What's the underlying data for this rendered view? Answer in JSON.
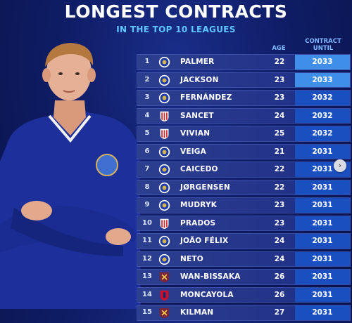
{
  "header": {
    "title": "LONGEST CONTRACTS",
    "subtitle": "IN THE TOP 10 LEAGUES",
    "age_label": "AGE",
    "contract_label_line1": "CONTRACT",
    "contract_label_line2": "UNTIL"
  },
  "colors": {
    "background": "#0f1d66",
    "accent": "#5ec6ff",
    "row_bg": "#2c3f8f",
    "contract_bg": "#1a4fc0",
    "contract_highlight_bg": "#3f8ee8"
  },
  "rows": [
    {
      "rank": "1",
      "club": "chelsea",
      "name": "PALMER",
      "age": "22",
      "until": "2033"
    },
    {
      "rank": "2",
      "club": "chelsea",
      "name": "JACKSON",
      "age": "23",
      "until": "2033"
    },
    {
      "rank": "3",
      "club": "chelsea",
      "name": "FERNÁNDEZ",
      "age": "23",
      "until": "2032"
    },
    {
      "rank": "4",
      "club": "athletic",
      "name": "SANCET",
      "age": "24",
      "until": "2032"
    },
    {
      "rank": "5",
      "club": "athletic",
      "name": "VIVIAN",
      "age": "25",
      "until": "2032"
    },
    {
      "rank": "6",
      "club": "chelsea",
      "name": "VEIGA",
      "age": "21",
      "until": "2031"
    },
    {
      "rank": "7",
      "club": "chelsea",
      "name": "CAICEDO",
      "age": "22",
      "until": "2031"
    },
    {
      "rank": "8",
      "club": "chelsea",
      "name": "JØRGENSEN",
      "age": "22",
      "until": "2031"
    },
    {
      "rank": "9",
      "club": "chelsea",
      "name": "MUDRYK",
      "age": "23",
      "until": "2031"
    },
    {
      "rank": "10",
      "club": "athletic",
      "name": "PRADOS",
      "age": "23",
      "until": "2031"
    },
    {
      "rank": "11",
      "club": "chelsea",
      "name": "JOÃO FÉLIX",
      "age": "24",
      "until": "2031"
    },
    {
      "rank": "12",
      "club": "chelsea",
      "name": "NETO",
      "age": "24",
      "until": "2031"
    },
    {
      "rank": "13",
      "club": "westham",
      "name": "WAN-BISSAKA",
      "age": "26",
      "until": "2031"
    },
    {
      "rank": "14",
      "club": "osasuna",
      "name": "MONCAYOLA",
      "age": "26",
      "until": "2031"
    },
    {
      "rank": "15",
      "club": "westham",
      "name": "KILMAN",
      "age": "27",
      "until": "2031"
    }
  ]
}
